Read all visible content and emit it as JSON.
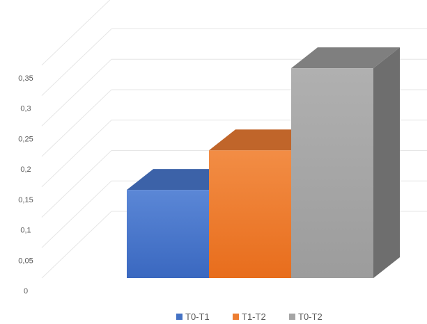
{
  "chart_data": {
    "type": "bar",
    "categories": [
      "T0-T1",
      "T1-T2",
      "T0-T2"
    ],
    "values": [
      0.145,
      0.21,
      0.345
    ],
    "y_ticks": [
      "0",
      "0,05",
      "0,1",
      "0,15",
      "0,2",
      "0,25",
      "0,3",
      "0,35"
    ],
    "ylim": [
      0,
      0.35
    ],
    "grid": true,
    "legend": "bottom",
    "legend_entries": [
      "T0-T1",
      "T1-T2",
      "T0-T2"
    ],
    "colors": [
      "#4472C4",
      "#ED7D31",
      "#A5A5A5"
    ],
    "style": "3d-column"
  }
}
